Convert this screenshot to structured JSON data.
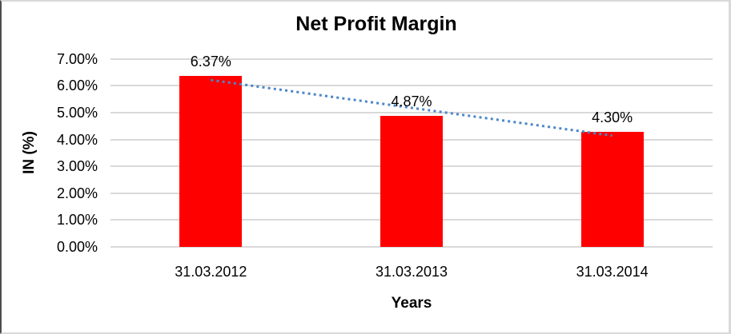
{
  "chart_data": {
    "type": "bar",
    "title": "Net Profit Margin",
    "categories": [
      "31.03.2012",
      "31.03.2013",
      "31.03.2014"
    ],
    "values": [
      6.37,
      4.87,
      4.3
    ],
    "data_labels": [
      "6.37%",
      "4.87%",
      "4.30%"
    ],
    "xlabel": "Years",
    "ylabel": "IN (%)",
    "ylim": [
      0,
      7
    ],
    "ytick_labels": [
      "0.00%",
      "1.00%",
      "2.00%",
      "3.00%",
      "4.00%",
      "5.00%",
      "6.00%",
      "7.00%"
    ],
    "grid": true,
    "legend": "none",
    "bar_color": "#FF0000",
    "gridline_color": "#d9d9d9",
    "trendline": {
      "type": "linear",
      "style": "dotted",
      "color": "#4A86C8"
    }
  }
}
